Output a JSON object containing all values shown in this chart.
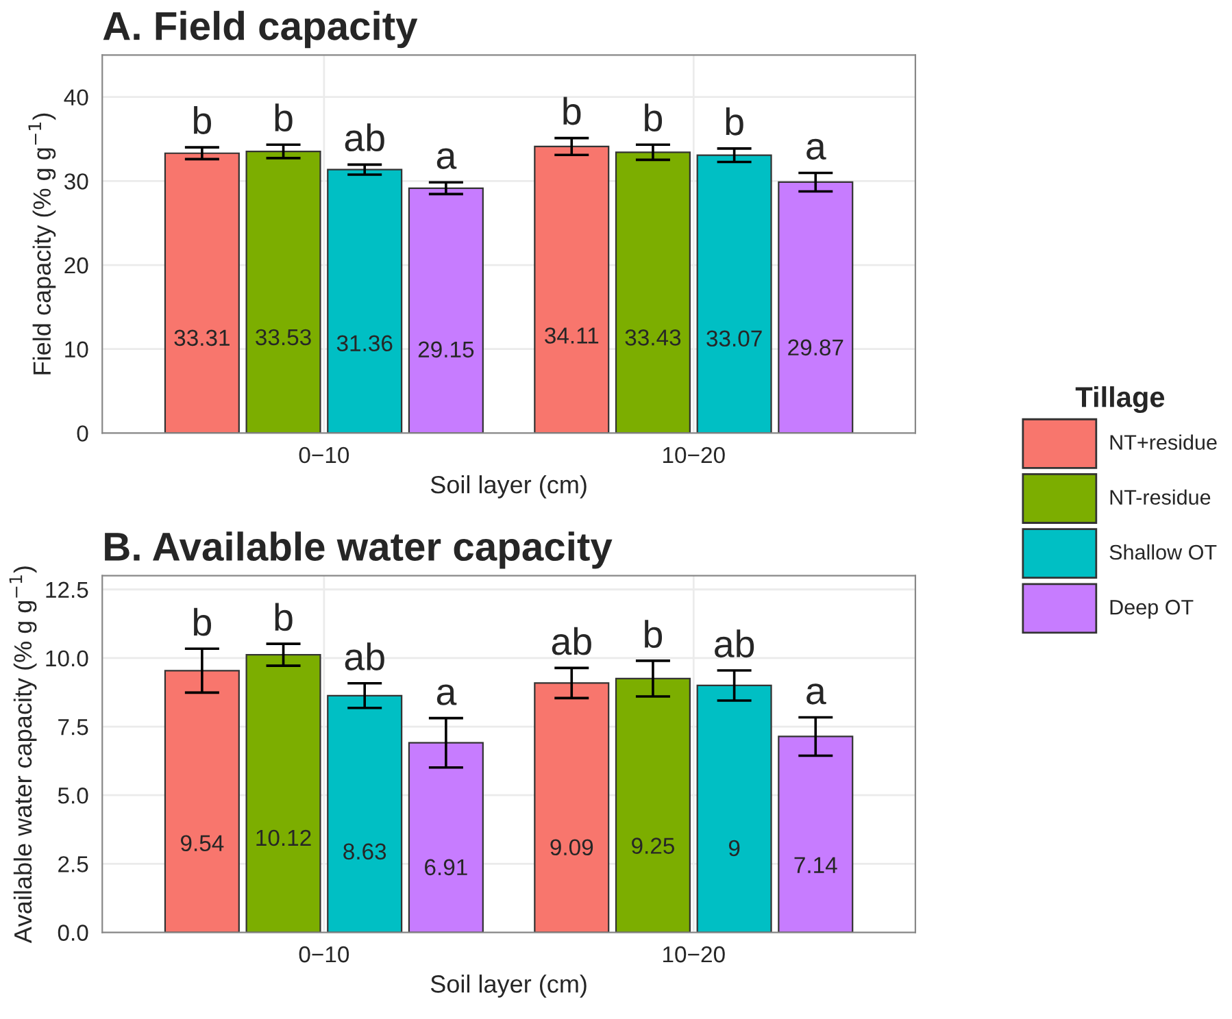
{
  "chart_data": [
    {
      "type": "bar",
      "title": "A. Field capacity",
      "xlabel": "Soil layer (cm)",
      "ylabel": "Field capacity (% g g$^{−1}$)",
      "categories": [
        "0−10",
        "10−20"
      ],
      "ylim": [
        0,
        45
      ],
      "yticks": [
        0,
        10,
        20,
        30,
        40
      ],
      "grid": true,
      "legend": "right",
      "legend_title": "Tillage",
      "data_labels": true,
      "series": [
        {
          "name": "NT+residue",
          "color": "#f8766d",
          "values": [
            33.31,
            34.11
          ],
          "errors": [
            0.7,
            1.0
          ]
        },
        {
          "name": "NT-residue",
          "color": "#7cae00",
          "values": [
            33.53,
            33.43
          ],
          "errors": [
            0.8,
            0.9
          ]
        },
        {
          "name": "Shallow OT",
          "color": "#00bfc4",
          "values": [
            31.36,
            33.07
          ],
          "errors": [
            0.6,
            0.8
          ]
        },
        {
          "name": "Deep OT",
          "color": "#c77cff",
          "values": [
            29.15,
            29.87
          ],
          "errors": [
            0.7,
            1.1
          ]
        }
      ],
      "annotations": [
        "b",
        "b",
        "ab",
        "a",
        "b",
        "b",
        "b",
        "a"
      ]
    },
    {
      "type": "bar",
      "title": "B. Available water capacity",
      "xlabel": "Soil layer (cm)",
      "ylabel": "Available water capacity (% g g$^{−1}$)",
      "categories": [
        "0−10",
        "10−20"
      ],
      "ylim": [
        0,
        13
      ],
      "yticks": [
        {
          "value": 0,
          "label": "0.0"
        },
        {
          "value": 2.5,
          "label": "2.5"
        },
        {
          "value": 5,
          "label": "5.0"
        },
        {
          "value": 7.5,
          "label": "7.5"
        },
        {
          "value": 10,
          "label": "10.0"
        },
        {
          "value": 12.5,
          "label": "12.5"
        }
      ],
      "grid": true,
      "data_labels": true,
      "series": [
        {
          "color": "#f8766d",
          "values": [
            9.54,
            9.09
          ],
          "errors": [
            0.8,
            0.55
          ]
        },
        {
          "color": "#7cae00",
          "values": [
            10.12,
            9.25
          ],
          "errors": [
            0.4,
            0.65
          ]
        },
        {
          "color": "#00bfc4",
          "values": [
            8.63,
            9
          ],
          "errors": [
            0.45,
            0.55
          ]
        },
        {
          "color": "#c77cff",
          "values": [
            6.91,
            7.14
          ],
          "errors": [
            0.9,
            0.7
          ]
        }
      ],
      "annotations": [
        "b",
        "b",
        "ab",
        "a",
        "ab",
        "b",
        "ab",
        "a"
      ]
    }
  ]
}
